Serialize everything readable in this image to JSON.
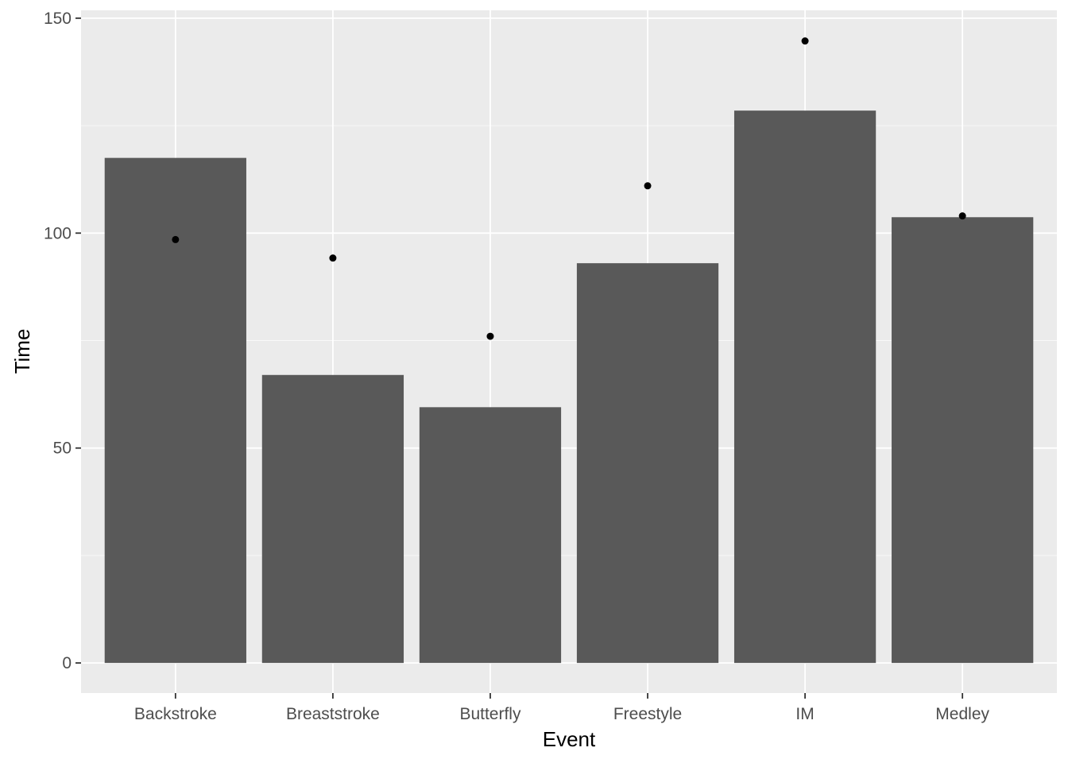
{
  "chart_data": {
    "type": "bar",
    "title": "",
    "xlabel": "Event",
    "ylabel": "Time",
    "categories": [
      "Backstroke",
      "Breaststroke",
      "Butterfly",
      "Freestyle",
      "IM",
      "Medley"
    ],
    "series": [
      {
        "type": "bar",
        "values": [
          117.5,
          67,
          59.5,
          93,
          128.5,
          103.7
        ]
      },
      {
        "type": "point",
        "values": [
          98.5,
          94.2,
          76,
          111,
          144.7,
          104
        ]
      }
    ],
    "ylim": [
      -7,
      150
    ],
    "yticks": [
      0,
      50,
      100,
      150
    ],
    "ytick_labels": [
      "0",
      "50",
      "100",
      "150"
    ],
    "grid": true,
    "legend": "none",
    "colors": {
      "panel": "#ebebeb",
      "grid": "#ffffff",
      "bar": "#595959",
      "point": "#000000",
      "tick_text": "#4d4d4d",
      "axis_title": "#000000"
    }
  }
}
